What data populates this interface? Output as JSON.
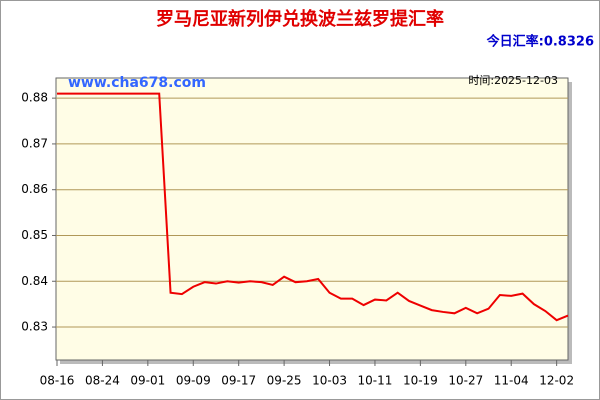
{
  "chart_data": {
    "type": "line",
    "title": "罗马尼亚新列伊兑换波兰兹罗提汇率",
    "current_rate": "今日汇率:0.8326",
    "watermark": "www.cha678.com",
    "date_note": "时间:2025-12-03",
    "categories": [
      "08-16",
      null,
      null,
      null,
      "08-24",
      null,
      null,
      null,
      "09-01",
      null,
      null,
      null,
      "09-09",
      null,
      null,
      null,
      "09-17",
      null,
      null,
      null,
      "09-25",
      null,
      null,
      null,
      "10-03",
      null,
      null,
      null,
      "10-11",
      null,
      null,
      null,
      "10-19",
      null,
      null,
      null,
      "10-27",
      null,
      null,
      null,
      "11-04",
      null,
      null,
      null,
      "12-02",
      null
    ],
    "series": [
      {
        "name": "汇率",
        "color": "#ee0000",
        "values": [
          0.881,
          0.881,
          0.881,
          0.881,
          0.881,
          0.881,
          0.881,
          0.881,
          0.881,
          0.881,
          0.8375,
          0.8372,
          0.8388,
          0.8398,
          0.8395,
          0.84,
          0.8397,
          0.84,
          0.8398,
          0.8392,
          0.841,
          0.8398,
          0.84,
          0.8405,
          0.8375,
          0.8362,
          0.8362,
          0.8348,
          0.836,
          0.8358,
          0.8375,
          0.8357,
          0.8347,
          0.8337,
          0.8333,
          0.833,
          0.8342,
          0.833,
          0.834,
          0.837,
          0.8368,
          0.8373,
          0.835,
          0.8335,
          0.8315,
          0.8325
        ]
      }
    ],
    "ylim": [
      0.8228,
      0.8844
    ],
    "yticks": [
      0.83,
      0.84,
      0.85,
      0.86,
      0.87,
      0.88
    ],
    "grid": true
  }
}
